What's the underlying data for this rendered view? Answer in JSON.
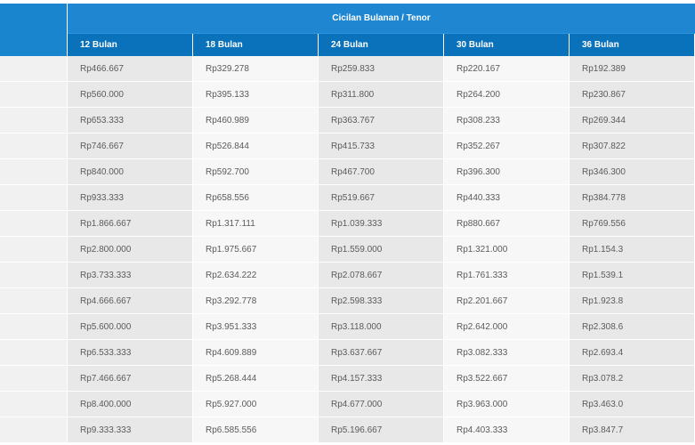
{
  "table": {
    "group_header": "Cicilan Bulanan / Tenor",
    "tenors": [
      "12 Bulan",
      "18 Bulan",
      "24 Bulan",
      "30 Bulan",
      "36 Bulan"
    ],
    "rows": [
      [
        "Rp466.667",
        "Rp329.278",
        "Rp259.833",
        "Rp220.167",
        "Rp192.389"
      ],
      [
        "Rp560.000",
        "Rp395.133",
        "Rp311.800",
        "Rp264.200",
        "Rp230.867"
      ],
      [
        "Rp653.333",
        "Rp460.989",
        "Rp363.767",
        "Rp308.233",
        "Rp269.344"
      ],
      [
        "Rp746.667",
        "Rp526.844",
        "Rp415.733",
        "Rp352.267",
        "Rp307.822"
      ],
      [
        "Rp840.000",
        "Rp592.700",
        "Rp467.700",
        "Rp396.300",
        "Rp346.300"
      ],
      [
        "Rp933.333",
        "Rp658.556",
        "Rp519.667",
        "Rp440.333",
        "Rp384.778"
      ],
      [
        "Rp1.866.667",
        "Rp1.317.111",
        "Rp1.039.333",
        "Rp880.667",
        "Rp769.556"
      ],
      [
        "Rp2.800.000",
        "Rp1.975.667",
        "Rp1.559.000",
        "Rp1.321.000",
        "Rp1.154.3"
      ],
      [
        "Rp3.733.333",
        "Rp2.634.222",
        "Rp2.078.667",
        "Rp1.761.333",
        "Rp1.539.1"
      ],
      [
        "Rp4.666.667",
        "Rp3.292.778",
        "Rp2.598.333",
        "Rp2.201.667",
        "Rp1.923.8"
      ],
      [
        "Rp5.600.000",
        "Rp3.951.333",
        "Rp3.118.000",
        "Rp2.642.000",
        "Rp2.308.6"
      ],
      [
        "Rp6.533.333",
        "Rp4.609.889",
        "Rp3.637.667",
        "Rp3.082.333",
        "Rp2.693.4"
      ],
      [
        "Rp7.466.667",
        "Rp5.268.444",
        "Rp4.157.333",
        "Rp3.522.667",
        "Rp3.078.2"
      ],
      [
        "Rp8.400.000",
        "Rp5.927.000",
        "Rp4.677.000",
        "Rp3.963.000",
        "Rp3.463.0"
      ],
      [
        "Rp9.333.333",
        "Rp6.585.556",
        "Rp5.196.667",
        "Rp4.403.333",
        "Rp3.847.7"
      ]
    ]
  },
  "colors": {
    "header_blue": "#1f87d1",
    "tenor_row_blue": "#0a72ba",
    "cell_gray_dark": "#e8e8e8",
    "cell_gray_light": "#f7f7f7",
    "text_gray": "#5b5b5b"
  }
}
